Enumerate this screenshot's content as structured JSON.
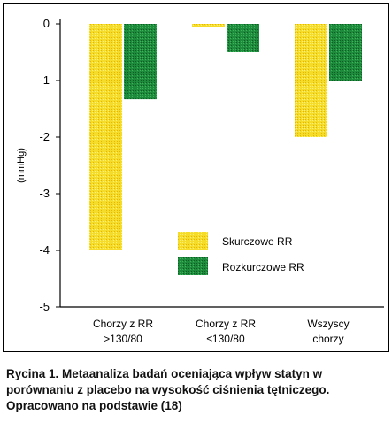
{
  "chart_data": {
    "type": "bar",
    "ylabel": "(mmHg)",
    "ylim": [
      -5,
      0
    ],
    "yticks": [
      "0",
      "-1",
      "-2",
      "-3",
      "-4",
      "-5"
    ],
    "categories": [
      [
        "Chorzy z RR",
        ">130/80"
      ],
      [
        "Chorzy z RR",
        "≤130/80"
      ],
      [
        "Wszyscy",
        "chorzy"
      ]
    ],
    "series": [
      {
        "name": "Skurczowe RR",
        "color": "#f2d21c",
        "values": [
          -4.0,
          -0.05,
          -2.0
        ]
      },
      {
        "name": "Rozkurczowe RR",
        "color": "#1f8a3c",
        "values": [
          -1.33,
          -0.5,
          -1.0
        ]
      }
    ],
    "legend": "inside-center"
  },
  "caption": {
    "lines": [
      "Rycina 1. Metaanaliza badań oceniająca wpływ statyn w",
      "porównaniu z placebo na wysokość ciśnienia tętniczego.",
      "Opracowano na podstawie (18)"
    ]
  }
}
